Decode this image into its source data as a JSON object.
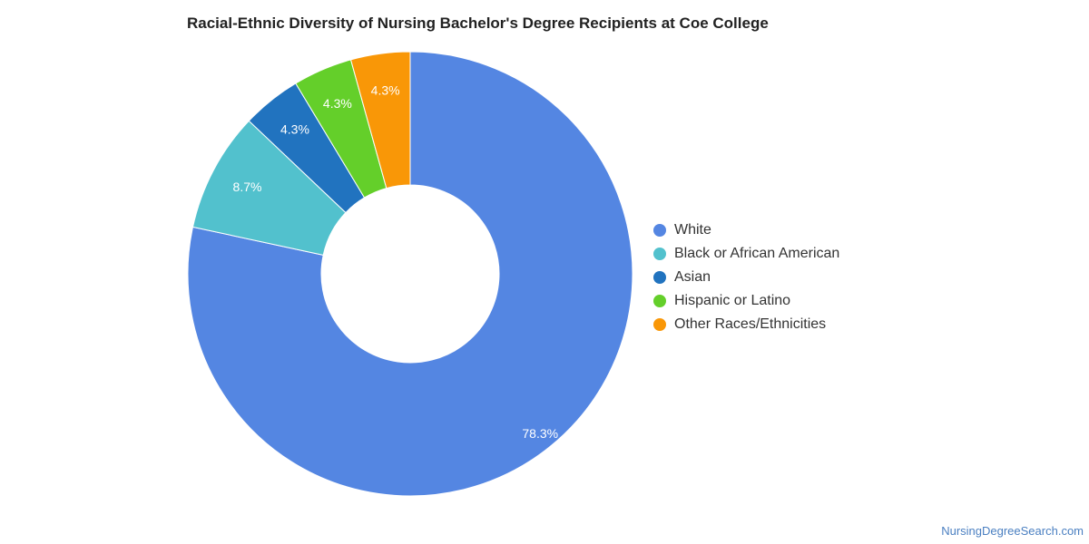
{
  "chart_data": {
    "type": "pie",
    "title": "Racial-Ethnic Diversity of Nursing Bachelor's Degree Recipients at Coe College",
    "categories": [
      "White",
      "Black or African American",
      "Asian",
      "Hispanic or Latino",
      "Other Races/Ethnicities"
    ],
    "values": [
      78.3,
      8.7,
      4.3,
      4.3,
      4.3
    ],
    "value_labels": [
      "78.3%",
      "8.7%",
      "4.3%",
      "4.3%",
      "4.3%"
    ],
    "colors": [
      "#5486e2",
      "#52c1cd",
      "#2173bf",
      "#64cf2a",
      "#f99707"
    ],
    "donut": true,
    "legend_position": "right"
  },
  "watermark": "NursingDegreeSearch.com"
}
